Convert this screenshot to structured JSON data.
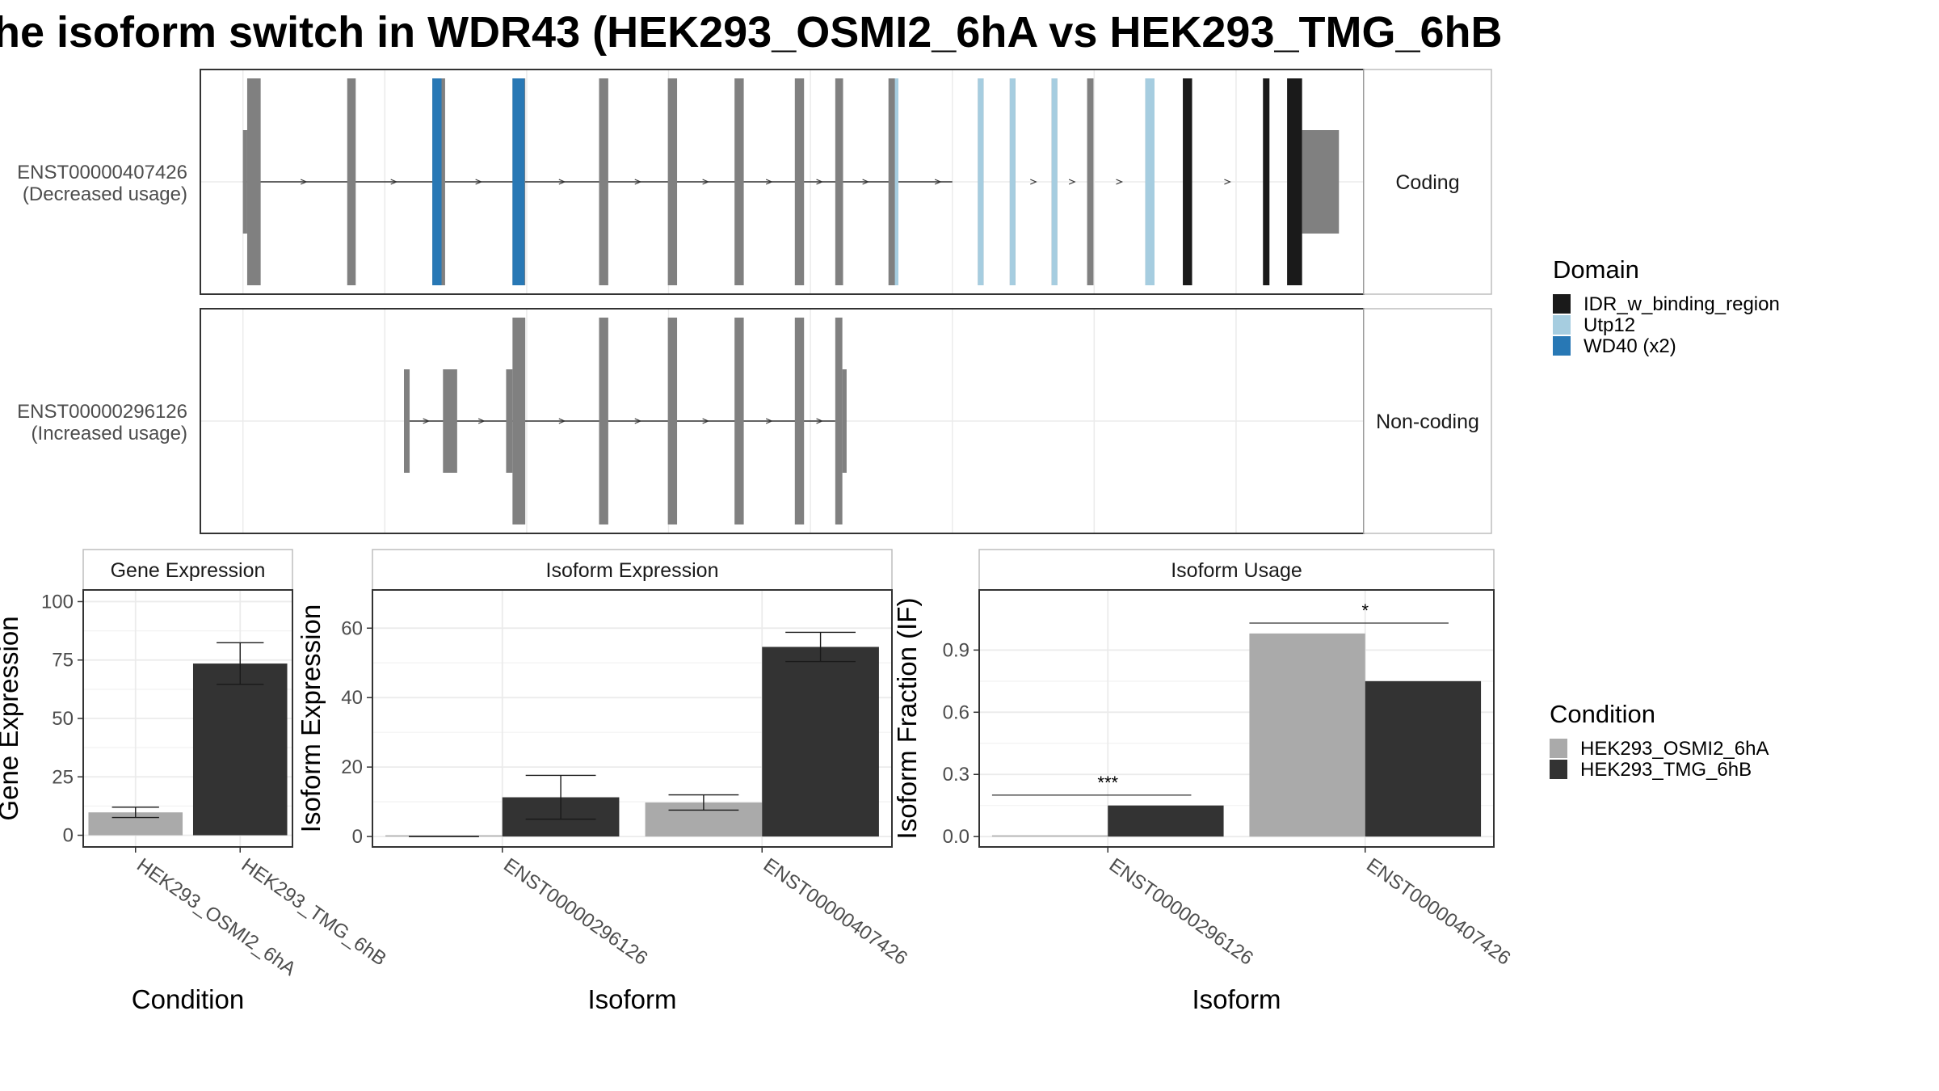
{
  "title": "he isoform switch in WDR43 (HEK293_OSMI2_6hA vs HEK293_TMG_6hB",
  "colors": {
    "exon": "#808080",
    "idr": "#1a1a1a",
    "utp12": "#a6cde0",
    "wd40": "#2878b5",
    "cond_a": "#aaaaaa",
    "cond_b": "#333333"
  },
  "transcripts": [
    {
      "id": "ENST00000407426",
      "usage": "(Decreased usage)",
      "facet": "Coding",
      "intron": [
        0,
        100
      ],
      "coding_exons": [
        [
          0.6,
          2.5
        ],
        [
          14.7,
          15.9
        ],
        [
          26.7,
          28.5
        ],
        [
          38.0,
          39.8
        ],
        [
          50.2,
          51.5
        ],
        [
          59.9,
          61.2
        ],
        [
          69.3,
          70.6
        ],
        [
          77.8,
          79.1
        ],
        [
          83.5,
          84.6
        ],
        [
          91.0,
          92.4
        ],
        [
          103.6,
          104.4
        ]
      ],
      "coding_block_exons": [
        [
          108.1,
          108.9
        ],
        [
          114.0,
          114.8
        ],
        [
          119.0,
          119.9
        ],
        [
          127.2,
          128.5
        ],
        [
          132.5,
          133.8
        ],
        [
          143.8,
          144.7
        ],
        [
          147.2,
          149.3
        ]
      ],
      "utr_exons": [
        [
          0,
          0.6
        ],
        [
          149.3,
          154.5
        ]
      ],
      "domains": [
        {
          "domain": "WD40 (x2)",
          "ranges": [
            [
              26.7,
              28.0
            ],
            [
              38.0,
              39.7
            ]
          ]
        },
        {
          "domain": "Utp12",
          "ranges": [
            [
              91.9,
              92.4
            ],
            [
              103.6,
              104.4
            ],
            [
              108.1,
              108.9
            ],
            [
              114.0,
              114.8
            ],
            [
              127.2,
              128.5
            ]
          ]
        },
        {
          "domain": "IDR_w_binding_region",
          "ranges": [
            [
              132.5,
              133.8
            ],
            [
              143.8,
              144.7
            ],
            [
              147.2,
              149.3
            ]
          ]
        }
      ]
    },
    {
      "id": "ENST00000296126",
      "usage": "(Increased usage)",
      "facet": "Non-coding",
      "intron": [
        22.7,
        83.5
      ],
      "coding_exons": [
        [
          38.0,
          39.8
        ],
        [
          50.2,
          51.5
        ],
        [
          59.9,
          61.2
        ],
        [
          69.3,
          70.6
        ],
        [
          77.8,
          79.1
        ],
        [
          83.5,
          84.5
        ]
      ],
      "nc_exons": [
        [
          22.7,
          23.5
        ],
        [
          28.2,
          30.2
        ],
        [
          37.1,
          38.0
        ],
        [
          84.5,
          85.1
        ]
      ]
    }
  ],
  "gene_axis": [
    -6,
    158
  ],
  "gridlines": [
    0,
    20,
    40,
    60,
    80,
    100,
    120,
    140
  ],
  "legend_domain": {
    "title": "Domain",
    "items": [
      {
        "label": "IDR_w_binding_region",
        "color": "#1a1a1a"
      },
      {
        "label": "Utp12",
        "color": "#a6cde0"
      },
      {
        "label": "WD40 (x2)",
        "color": "#2878b5"
      }
    ]
  },
  "legend_condition": {
    "title": "Condition",
    "items": [
      {
        "label": "HEK293_OSMI2_6hA",
        "color": "#aaaaaa"
      },
      {
        "label": "HEK293_TMG_6hB",
        "color": "#333333"
      }
    ]
  },
  "chart_data": [
    {
      "type": "bar",
      "title": "Gene Expression",
      "xlabel": "Condition",
      "ylabel": "Gene Expression",
      "ylim": [
        -5,
        105
      ],
      "yticks": [
        0,
        25,
        50,
        75,
        100
      ],
      "categories": [
        "HEK293_OSMI2_6hA",
        "HEK293_TMG_6hB"
      ],
      "values": [
        9.8,
        73.5
      ],
      "errors": [
        [
          7.6,
          12.0
        ],
        [
          64.6,
          82.4
        ]
      ]
    },
    {
      "type": "bar",
      "title": "Isoform Expression",
      "xlabel": "Isoform",
      "ylabel": "Isoform Expression",
      "ylim": [
        -3,
        71
      ],
      "yticks": [
        0,
        20,
        40,
        60
      ],
      "categories": [
        "ENST00000296126",
        "ENST00000407426"
      ],
      "series": [
        {
          "name": "HEK293_OSMI2_6hA",
          "values": [
            0.0,
            9.8
          ],
          "errors": [
            [
              0.0,
              0.0
            ],
            [
              7.6,
              12.0
            ]
          ]
        },
        {
          "name": "HEK293_TMG_6hB",
          "values": [
            11.3,
            54.6
          ],
          "errors": [
            [
              5.0,
              17.6
            ],
            [
              50.4,
              58.8
            ]
          ]
        }
      ]
    },
    {
      "type": "bar",
      "title": "Isoform Usage",
      "xlabel": "Isoform",
      "ylabel": "Isoform Fraction (IF)",
      "ylim": [
        -0.05,
        1.19
      ],
      "yticks": [
        "0.0",
        "0.3",
        "0.6",
        "0.9"
      ],
      "categories": [
        "ENST00000296126",
        "ENST00000407426"
      ],
      "series": [
        {
          "name": "HEK293_OSMI2_6hA",
          "values": [
            0.0,
            0.98
          ]
        },
        {
          "name": "HEK293_TMG_6hB",
          "values": [
            0.15,
            0.75
          ]
        }
      ],
      "significance": [
        {
          "category": "ENST00000296126",
          "label": "***",
          "y": 0.2
        },
        {
          "category": "ENST00000407426",
          "label": "*",
          "y": 1.03
        }
      ]
    }
  ]
}
